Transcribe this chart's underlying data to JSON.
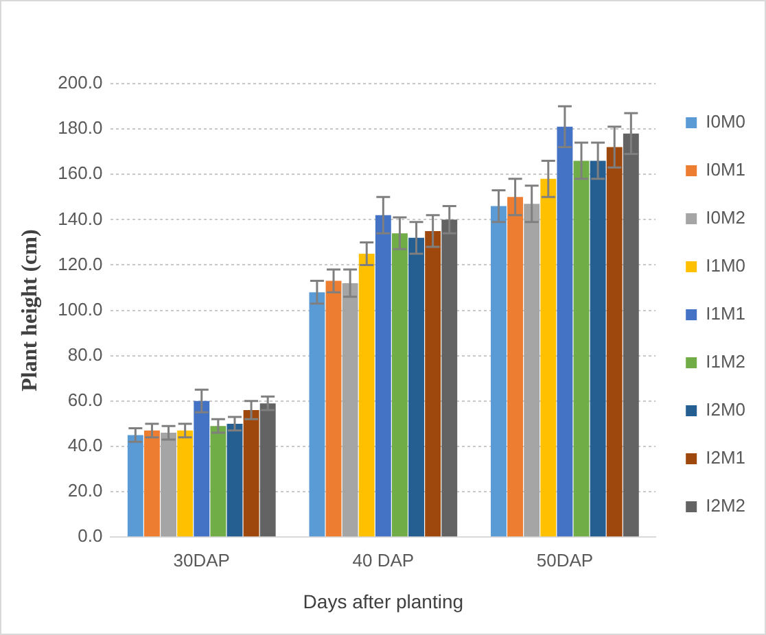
{
  "chart_data": {
    "type": "bar",
    "xlabel": "Days after planting",
    "ylabel": "Plant height (cm)",
    "categories": [
      "30DAP",
      "40 DAP",
      "50DAP"
    ],
    "ylim": [
      0,
      200
    ],
    "yticks": [
      {
        "value": 0,
        "label": "0.0"
      },
      {
        "value": 20,
        "label": "20.0"
      },
      {
        "value": 40,
        "label": "40.0"
      },
      {
        "value": 60,
        "label": "60.0"
      },
      {
        "value": 80,
        "label": "80.0"
      },
      {
        "value": 100,
        "label": "100.0"
      },
      {
        "value": 120,
        "label": "120.0"
      },
      {
        "value": 140,
        "label": "140.0"
      },
      {
        "value": 160,
        "label": "160.0"
      },
      {
        "value": 180,
        "label": "180.0"
      },
      {
        "value": 200,
        "label": "200.0"
      }
    ],
    "grid": "y",
    "legend": "right",
    "series": [
      {
        "name": "I0M0",
        "color": "#5b9bd5",
        "values": [
          45,
          108,
          146
        ],
        "errors": [
          3,
          5,
          7
        ]
      },
      {
        "name": "I0M1",
        "color": "#ed7d31",
        "values": [
          47,
          113,
          150
        ],
        "errors": [
          3,
          5,
          8
        ]
      },
      {
        "name": "I0M2",
        "color": "#a5a5a5",
        "values": [
          46,
          112,
          147
        ],
        "errors": [
          3,
          6,
          8
        ]
      },
      {
        "name": "I1M0",
        "color": "#ffc000",
        "values": [
          47,
          125,
          158
        ],
        "errors": [
          3,
          5,
          8
        ]
      },
      {
        "name": "I1M1",
        "color": "#4472c4",
        "values": [
          60,
          142,
          181
        ],
        "errors": [
          5,
          8,
          9
        ]
      },
      {
        "name": "I1M2",
        "color": "#70ad47",
        "values": [
          49,
          134,
          166
        ],
        "errors": [
          3,
          7,
          8
        ]
      },
      {
        "name": "I2M0",
        "color": "#255e91",
        "values": [
          50,
          132,
          166
        ],
        "errors": [
          3,
          7,
          8
        ]
      },
      {
        "name": "I2M1",
        "color": "#9e480e",
        "values": [
          56,
          135,
          172
        ],
        "errors": [
          4,
          7,
          9
        ]
      },
      {
        "name": "I2M2",
        "color": "#636363",
        "values": [
          59,
          140,
          178
        ],
        "errors": [
          3,
          6,
          9
        ]
      }
    ]
  }
}
